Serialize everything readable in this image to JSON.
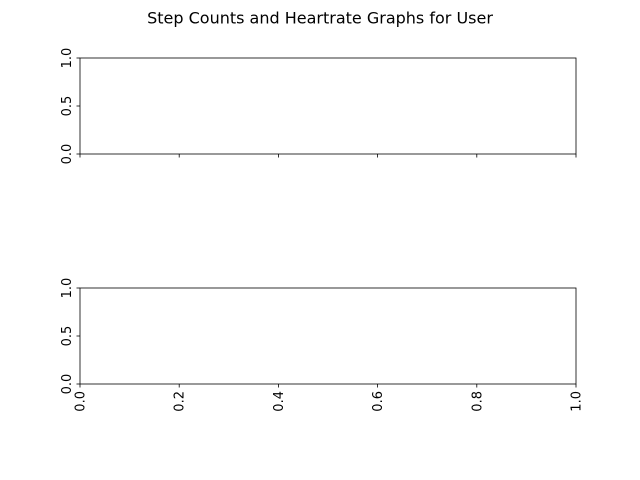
{
  "chart_data": {
    "title": "Step Counts and Heartrate Graphs for User",
    "subplots": [
      {
        "type": "line",
        "series": [],
        "xlim": [
          0.0,
          1.0
        ],
        "ylim": [
          0.0,
          1.0
        ],
        "x_ticks": [
          "",
          "",
          "",
          "",
          "",
          ""
        ],
        "y_ticks": [
          "0.0",
          "0.5",
          "1.0"
        ],
        "grid": false
      },
      {
        "type": "line",
        "series": [],
        "xlim": [
          0.0,
          1.0
        ],
        "ylim": [
          0.0,
          1.0
        ],
        "x_ticks": [
          "0.0",
          "0.2",
          "0.4",
          "0.6",
          "0.8",
          "1.0"
        ],
        "y_ticks": [
          "0.0",
          "0.5",
          "1.0"
        ],
        "grid": false
      }
    ]
  },
  "colors": {
    "axes": "#000000",
    "background": "#ffffff"
  }
}
